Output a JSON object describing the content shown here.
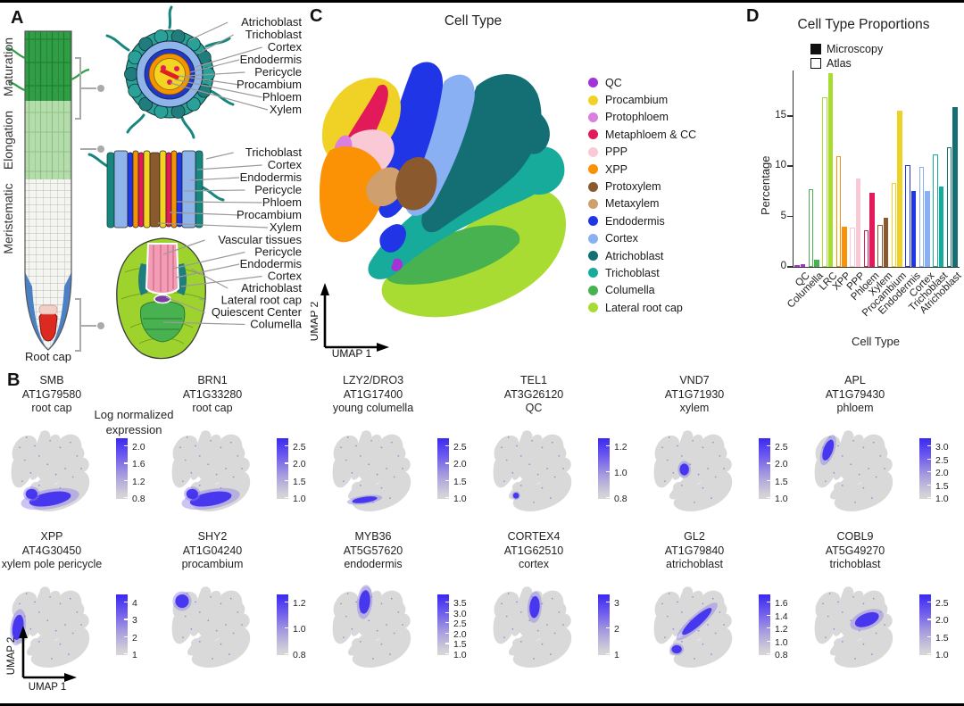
{
  "figure": {
    "panel_a": {
      "letter": "A",
      "zone_labels": [
        "Maturation",
        "Elongation",
        "Meristematic"
      ],
      "root_cap_label": "Root cap",
      "cross_section_labels": [
        "Atrichoblast",
        "Trichoblast",
        "Cortex",
        "Endodermis",
        "Pericycle",
        "Procambium",
        "Phloem",
        "Xylem"
      ],
      "longitudinal_labels": [
        "Trichoblast",
        "Cortex",
        "Endodermis",
        "Pericycle",
        "Phloem",
        "Procambium",
        "Xylem"
      ],
      "root_tip_labels": [
        "Vascular tissues",
        "Pericycle",
        "Endodermis",
        "Cortex",
        "Atrichoblast",
        "Lateral root cap",
        "Quiescent Center",
        "Columella"
      ]
    },
    "panel_c": {
      "letter": "C",
      "title": "Cell Type",
      "x_axis": "UMAP 1",
      "y_axis": "UMAP 2",
      "legend": [
        {
          "label": "QC",
          "color": "#a333d6"
        },
        {
          "label": "Procambium",
          "color": "#f0d226"
        },
        {
          "label": "Protophloem",
          "color": "#da7fe0"
        },
        {
          "label": "Metaphloem & CC",
          "color": "#e31a59"
        },
        {
          "label": "PPP",
          "color": "#f9c9d6"
        },
        {
          "label": "XPP",
          "color": "#fb9104"
        },
        {
          "label": "Protoxylem",
          "color": "#8a5a2e"
        },
        {
          "label": "Metaxylem",
          "color": "#cfa06e"
        },
        {
          "label": "Endodermis",
          "color": "#1f35e6"
        },
        {
          "label": "Cortex",
          "color": "#88b0f2"
        },
        {
          "label": "Atrichoblast",
          "color": "#146f74"
        },
        {
          "label": "Trichoblast",
          "color": "#17ab9c"
        },
        {
          "label": "Columella",
          "color": "#47b24f"
        },
        {
          "label": "Lateral root cap",
          "color": "#a8dc32"
        }
      ]
    },
    "panel_d": {
      "letter": "D"
    },
    "panel_b": {
      "letter": "B",
      "colorbar_title": "Log normalized expression",
      "x_axis": "UMAP 1",
      "y_axis": "UMAP 2",
      "plots": [
        {
          "gene": "SMB",
          "id": "AT1G79580",
          "tissue": "root cap",
          "ticks": [
            "2.0",
            "1.6",
            "1.2",
            "0.8"
          ]
        },
        {
          "gene": "BRN1",
          "id": "AT1G33280",
          "tissue": "root cap",
          "ticks": [
            "2.5",
            "2.0",
            "1.5",
            "1.0"
          ]
        },
        {
          "gene": "LZY2/DRO3",
          "id": "AT1G17400",
          "tissue": "young columella",
          "ticks": [
            "2.5",
            "2.0",
            "1.5",
            "1.0"
          ]
        },
        {
          "gene": "TEL1",
          "id": "AT3G26120",
          "tissue": "QC",
          "ticks": [
            "1.2",
            "1.0",
            "0.8"
          ]
        },
        {
          "gene": "VND7",
          "id": "AT1G71930",
          "tissue": "xylem",
          "ticks": [
            "2.5",
            "2.0",
            "1.5",
            "1.0"
          ]
        },
        {
          "gene": "APL",
          "id": "AT1G79430",
          "tissue": "phloem",
          "ticks": [
            "3.0",
            "2.5",
            "2.0",
            "1.5",
            "1.0"
          ]
        },
        {
          "gene": "XPP",
          "id": "AT4G30450",
          "tissue": "xylem pole pericycle",
          "ticks": [
            "4",
            "3",
            "2",
            "1"
          ]
        },
        {
          "gene": "SHY2",
          "id": "AT1G04240",
          "tissue": "procambium",
          "ticks": [
            "1.2",
            "1.0",
            "0.8"
          ]
        },
        {
          "gene": "MYB36",
          "id": "AT5G57620",
          "tissue": "endodermis",
          "ticks": [
            "3.5",
            "3.0",
            "2.5",
            "2.0",
            "1.5",
            "1.0"
          ]
        },
        {
          "gene": "CORTEX4",
          "id": "AT1G62510",
          "tissue": "cortex",
          "ticks": [
            "3",
            "2",
            "1"
          ]
        },
        {
          "gene": "GL2",
          "id": "AT1G79840",
          "tissue": "atrichoblast",
          "ticks": [
            "1.6",
            "1.4",
            "1.2",
            "1.0",
            "0.8"
          ]
        },
        {
          "gene": "COBL9",
          "id": "AT5G49270",
          "tissue": "trichoblast",
          "ticks": [
            "2.5",
            "2.0",
            "1.5",
            "1.0"
          ]
        }
      ]
    }
  },
  "chart_data": {
    "type": "bar",
    "title": "Cell Type Proportions",
    "xlabel": "Cell Type",
    "ylabel": "Percentage",
    "ylim": [
      0,
      19.5
    ],
    "yticks": [
      0,
      5,
      10,
      15
    ],
    "legend": [
      {
        "label": "Microscopy",
        "style": "filled"
      },
      {
        "label": "Atlas",
        "style": "open"
      }
    ],
    "categories": [
      "QC",
      "Columella",
      "LRC",
      "XPP",
      "PPP",
      "Phloem",
      "Xylem",
      "Procambium",
      "Endodermis",
      "Cortex",
      "Trichoblast",
      "Atrichoblast"
    ],
    "category_colors": [
      "#a333d6",
      "#47b24f",
      "#a8dc32",
      "#fb9104",
      "#f9c9d6",
      "#e31a59",
      "#8a5a2e",
      "#f0d226",
      "#1f35e6",
      "#88b0f2",
      "#17ab9c",
      "#146f74"
    ],
    "series": [
      {
        "name": "Atlas",
        "style": "open",
        "values": [
          0.2,
          7.7,
          16.8,
          11.0,
          3.9,
          3.6,
          4.2,
          8.3,
          10.1,
          9.9,
          11.2,
          11.9
        ]
      },
      {
        "name": "Microscopy",
        "style": "filled",
        "values": [
          0.3,
          0.7,
          19.2,
          4.0,
          8.8,
          7.4,
          4.9,
          15.5,
          7.5,
          7.5,
          8.0,
          15.9
        ]
      }
    ]
  }
}
